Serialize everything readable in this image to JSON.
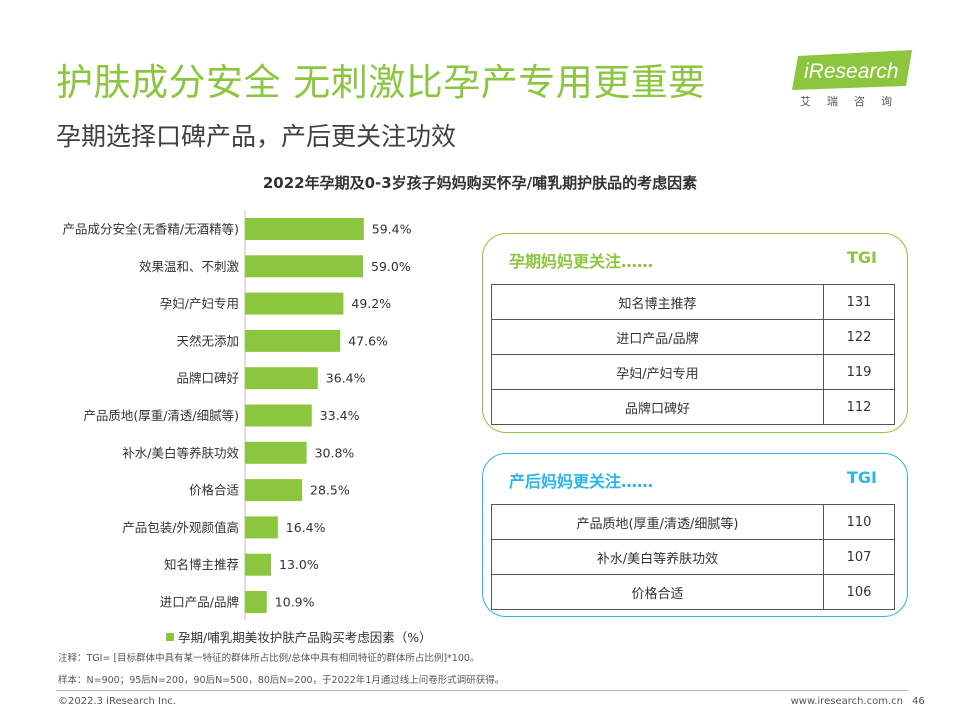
{
  "header": {
    "title": "护肤成分安全 无刺激比孕产专用更重要",
    "subtitle": "孕期选择口碑产品，产后更关注功效"
  },
  "logo": {
    "text": "iResearch",
    "sub": "艾瑞咨询",
    "color": "#8cc63f"
  },
  "chart_data": {
    "type": "bar",
    "orientation": "horizontal",
    "title": "2022年孕期及0-3岁孩子妈妈购买怀孕/哺乳期护肤品的考虑因素",
    "categories": [
      "产品成分安全(无香精/无酒精等)",
      "效果温和、不刺激",
      "孕妇/产妇专用",
      "天然无添加",
      "品牌口碑好",
      "产品质地(厚重/清透/细腻等)",
      "补水/美白等养肤功效",
      "价格合适",
      "产品包装/外观颜值高",
      "知名博主推荐",
      "进口产品/品牌"
    ],
    "values": [
      59.4,
      59.0,
      49.2,
      47.6,
      36.4,
      33.4,
      30.8,
      28.5,
      16.4,
      13.0,
      10.9
    ],
    "value_labels": [
      "59.4%",
      "59.0%",
      "49.2%",
      "47.6%",
      "36.4%",
      "33.4%",
      "30.8%",
      "28.5%",
      "16.4%",
      "13.0%",
      "10.9%"
    ],
    "legend": "孕期/哺乳期美妆护肤产品购买考虑因素（%）",
    "legend_position": "bottom",
    "xlim": [
      0,
      100
    ],
    "grid": false,
    "bar_color": "#8cc63f"
  },
  "panels": {
    "pregnancy": {
      "heading": "孕期妈妈更关注……",
      "tgi_label": "TGI",
      "color": "#8cc63f",
      "rows": [
        {
          "label": "知名博主推荐",
          "value": "131"
        },
        {
          "label": "进口产品/品牌",
          "value": "122"
        },
        {
          "label": "孕妇/产妇专用",
          "value": "119"
        },
        {
          "label": "品牌口碑好",
          "value": "112"
        }
      ]
    },
    "postpartum": {
      "heading": "产后妈妈更关注……",
      "tgi_label": "TGI",
      "color": "#29b6e8",
      "rows": [
        {
          "label": "产品质地(厚重/清透/细腻等)",
          "value": "110"
        },
        {
          "label": "补水/美白等养肤功效",
          "value": "107"
        },
        {
          "label": "价格合适",
          "value": "106"
        }
      ]
    }
  },
  "notes": {
    "note1": "注释：TGI= [目标群体中具有某一特征的群体所占比例/总体中具有相同特征的群体所占比例]*100。",
    "note2": "样本：N=900；95后N=200，90后N=500，80后N=200，于2022年1月通过线上问卷形式调研获得。"
  },
  "footer": {
    "copyright": "©2022.3 iResearch Inc.",
    "url": "www.iresearch.com.cn",
    "page": "46"
  }
}
